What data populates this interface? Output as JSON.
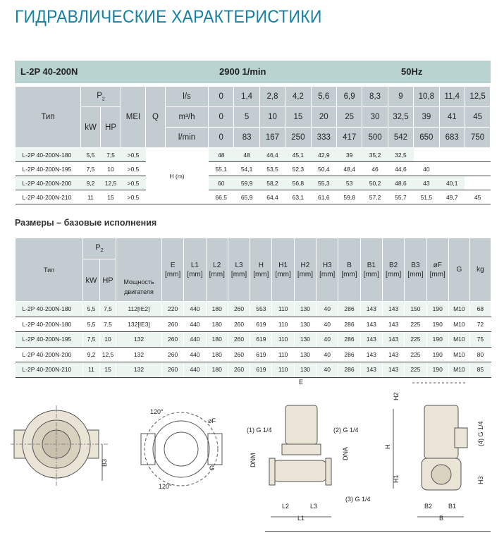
{
  "page_title": "ГИДРАВЛИЧЕСКИЕ ХАРАКТЕРИСТИКИ",
  "band": {
    "model": "L-2P 40-200N",
    "speed": "2900 1/min",
    "freq": "50Hz"
  },
  "colors": {
    "title": "#1581a3",
    "band": "#b9d3d0",
    "header": "#c3cdd1",
    "row_alt": "#edf5f1"
  },
  "hydraulic": {
    "h_type": "Тип",
    "h_p2": "P",
    "h_p2_sub": "2",
    "h_kw": "kW",
    "h_hp": "HP",
    "h_mei": "MEI",
    "h_q": "Q",
    "h_unit_ls": "l/s",
    "h_unit_m3h": "m³/h",
    "h_unit_lmin": "l/min",
    "h_head": "H (m)",
    "q_ls": [
      "0",
      "1,4",
      "2,8",
      "4,2",
      "5,6",
      "6,9",
      "8,3",
      "9",
      "10,8",
      "11,4",
      "12,5"
    ],
    "q_m3h": [
      "0",
      "5",
      "10",
      "15",
      "20",
      "25",
      "30",
      "32,5",
      "39",
      "41",
      "45"
    ],
    "q_lmin": [
      "0",
      "83",
      "167",
      "250",
      "333",
      "417",
      "500",
      "542",
      "650",
      "683",
      "750"
    ],
    "rows": [
      {
        "type": "L-2P 40-200N-180",
        "kw": "5,5",
        "hp": "7,5",
        "mei": ">0,5",
        "h": [
          "48",
          "48",
          "46,4",
          "45,1",
          "42,9",
          "39",
          "35,2",
          "32,5",
          "",
          "",
          ""
        ]
      },
      {
        "type": "L-2P 40-200N-195",
        "kw": "7,5",
        "hp": "10",
        "mei": ">0,5",
        "h": [
          "55,1",
          "54,1",
          "53,5",
          "52,3",
          "50,4",
          "48,4",
          "46",
          "44,6",
          "40",
          "",
          ""
        ]
      },
      {
        "type": "L-2P 40-200N-200",
        "kw": "9,2",
        "hp": "12,5",
        "mei": ">0,5",
        "h": [
          "60",
          "59,9",
          "58,2",
          "56,8",
          "55,3",
          "53",
          "50,2",
          "48,6",
          "43",
          "40,1",
          ""
        ]
      },
      {
        "type": "L-2P 40-200N-210",
        "kw": "11",
        "hp": "15",
        "mei": ">0,5",
        "h": [
          "66,5",
          "65,9",
          "64,4",
          "63,1",
          "61,6",
          "59,8",
          "57,2",
          "55,7",
          "51,5",
          "49,7",
          "45"
        ]
      }
    ]
  },
  "dims_title": "Размеры – базовые исполнения",
  "dimensions": {
    "h_type": "Тип",
    "h_p2": "P",
    "h_p2_sub": "2",
    "h_kw": "kW",
    "h_hp": "HP",
    "h_motor": "Мощность двигателя",
    "cols": [
      {
        "name": "E",
        "unit": "[mm]"
      },
      {
        "name": "L1",
        "unit": "[mm]"
      },
      {
        "name": "L2",
        "unit": "[mm]"
      },
      {
        "name": "L3",
        "unit": "[mm]"
      },
      {
        "name": "H",
        "unit": "[mm]"
      },
      {
        "name": "H1",
        "unit": "[mm]"
      },
      {
        "name": "H2",
        "unit": "[mm]"
      },
      {
        "name": "H3",
        "unit": "[mm]"
      },
      {
        "name": "B",
        "unit": "[mm]"
      },
      {
        "name": "B1",
        "unit": "[mm]"
      },
      {
        "name": "B2",
        "unit": "[mm]"
      },
      {
        "name": "B3",
        "unit": "[mm]"
      },
      {
        "name": "øF",
        "unit": "[mm]"
      },
      {
        "name": "G",
        "unit": ""
      },
      {
        "name": "kg",
        "unit": ""
      }
    ],
    "rows": [
      {
        "type": "L-2P 40-200N-180",
        "kw": "5,5",
        "hp": "7,5",
        "motor": "112[IE2]",
        "v": [
          "220",
          "440",
          "180",
          "260",
          "553",
          "110",
          "130",
          "40",
          "286",
          "143",
          "143",
          "150",
          "190",
          "M10",
          "68"
        ]
      },
      {
        "type": "L-2P 40-200N-180",
        "kw": "5,5",
        "hp": "7,5",
        "motor": "132[IE3]",
        "v": [
          "260",
          "440",
          "180",
          "260",
          "619",
          "110",
          "130",
          "40",
          "286",
          "143",
          "143",
          "225",
          "190",
          "M10",
          "72"
        ]
      },
      {
        "type": "L-2P 40-200N-195",
        "kw": "7,5",
        "hp": "10",
        "motor": "132",
        "v": [
          "260",
          "440",
          "180",
          "260",
          "619",
          "110",
          "130",
          "40",
          "286",
          "143",
          "143",
          "225",
          "190",
          "M10",
          "75"
        ]
      },
      {
        "type": "L-2P 40-200N-200",
        "kw": "9,2",
        "hp": "12,5",
        "motor": "132",
        "v": [
          "260",
          "440",
          "180",
          "260",
          "619",
          "110",
          "130",
          "40",
          "286",
          "143",
          "143",
          "225",
          "190",
          "M10",
          "80"
        ]
      },
      {
        "type": "L-2P 40-200N-210",
        "kw": "11",
        "hp": "15",
        "motor": "132",
        "v": [
          "260",
          "440",
          "180",
          "260",
          "619",
          "110",
          "130",
          "40",
          "286",
          "143",
          "143",
          "225",
          "190",
          "M10",
          "85"
        ]
      }
    ]
  },
  "drawings": {
    "flange_top": {
      "b3": "B3"
    },
    "flange_angles": {
      "angle1": "120°",
      "angle2": "120°",
      "f": "øF",
      "g": "G"
    },
    "front": {
      "e": "E",
      "p1": "(1) G 1/4",
      "p2": "(2) G 1/4",
      "p3": "(3) G 1/4",
      "dnm": "DNM",
      "dna": "DNA",
      "l1": "L1",
      "l2": "L2",
      "l3": "L3"
    },
    "side": {
      "h": "H",
      "h1": "H1",
      "h2": "H2",
      "h3": "H3",
      "p4": "(4) G 1/4",
      "b": "B",
      "b1": "B1",
      "b2": "B2"
    }
  }
}
